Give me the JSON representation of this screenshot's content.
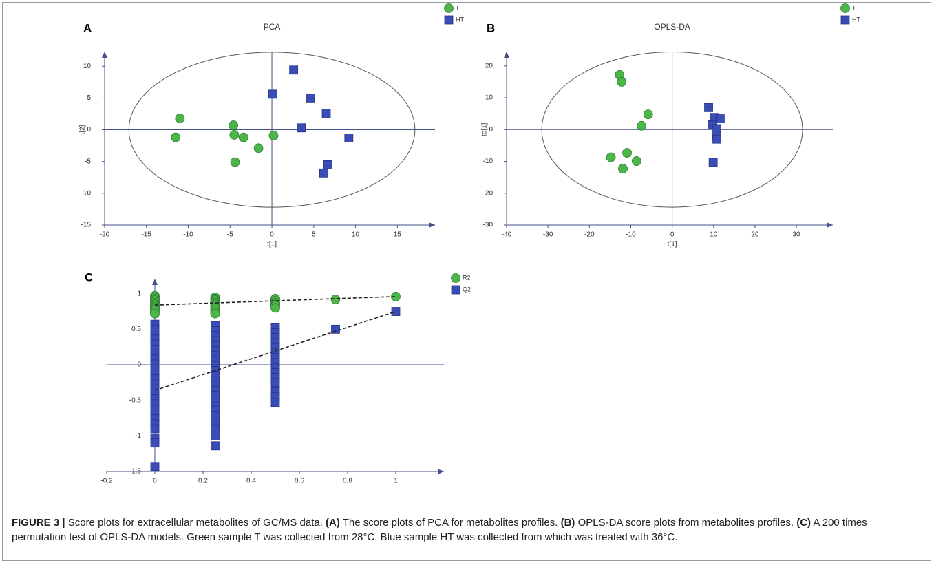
{
  "chart_data": [
    {
      "type": "scatter",
      "letter": "A",
      "title": "PCA",
      "x_label": "t[1]",
      "y_label": "t[2]",
      "xlim": [
        -20,
        19.5
      ],
      "ylim": [
        -15,
        12.3
      ],
      "xticks": [
        -20,
        -15,
        -10,
        -5,
        0,
        5,
        10,
        15
      ],
      "yticks": [
        -15,
        -10,
        -5,
        0,
        5,
        10
      ],
      "zero_lines": true,
      "ellipse": {
        "rx": 17.1,
        "ry": 12.2
      },
      "series": [
        {
          "name": "T",
          "color": "#4cb648",
          "marker": "circle",
          "x": [
            -11,
            -11.5,
            -4.6,
            -4.5,
            -3.4,
            -4.4,
            -1.6,
            0.2
          ],
          "values": [
            1.8,
            -1.2,
            0.7,
            -0.8,
            -1.2,
            -5.1,
            -2.9,
            -0.9
          ]
        },
        {
          "name": "HT",
          "color": "#3a4db5",
          "marker": "square",
          "x": [
            2.6,
            0.1,
            4.6,
            6.5,
            3.5,
            9.2,
            6.7,
            6.2
          ],
          "values": [
            9.4,
            5.6,
            5,
            2.6,
            0.3,
            -1.3,
            -5.5,
            -6.8
          ]
        }
      ]
    },
    {
      "type": "scatter",
      "letter": "B",
      "title": "OPLS-DA",
      "x_label": "t[1]",
      "y_label": "to[1]",
      "xlim": [
        -40,
        38.8
      ],
      "ylim": [
        -30,
        24.5
      ],
      "xticks": [
        -40,
        -30,
        -20,
        -10,
        0,
        10,
        20,
        30
      ],
      "yticks": [
        -30,
        -20,
        -10,
        0,
        10,
        20
      ],
      "zero_lines": true,
      "ellipse": {
        "rx": 31.5,
        "ry": 24.4
      },
      "series": [
        {
          "name": "T",
          "color": "#4cb648",
          "marker": "circle",
          "x": [
            -12.7,
            -12.2,
            -5.8,
            -7.4,
            -14.8,
            -10.9,
            -8.6,
            -11.9
          ],
          "values": [
            17.2,
            15,
            4.8,
            1.2,
            -8.7,
            -7.3,
            -9.9,
            -12.3
          ]
        },
        {
          "name": "HT",
          "color": "#3a4db5",
          "marker": "square",
          "x": [
            8.8,
            10.2,
            11.6,
            9.7,
            10.8,
            10.6,
            10.8,
            9.9
          ],
          "values": [
            6.9,
            3.8,
            3.4,
            1.5,
            0.3,
            -1.8,
            -3,
            -10.3
          ]
        }
      ]
    },
    {
      "type": "scatter",
      "letter": "C",
      "xlim": [
        -0.2,
        1.2
      ],
      "ylim": [
        -1.5,
        1.21
      ],
      "xticks": [
        -0.2,
        0,
        0.2,
        0.4,
        0.6,
        0.8,
        1
      ],
      "yticks": [
        -1.5,
        -1,
        -0.5,
        0,
        0.5,
        1
      ],
      "zero_lines": true,
      "series": [
        {
          "name": "R2",
          "color": "#4cb648",
          "marker": "circle",
          "x": [
            0,
            0,
            0,
            0,
            0,
            0,
            0,
            0,
            0,
            0,
            0,
            0,
            0,
            0.25,
            0.25,
            0.25,
            0.25,
            0.25,
            0.25,
            0.25,
            0.25,
            0.25,
            0.25,
            0.25,
            0.5,
            0.5,
            0.5,
            0.5,
            0.5,
            0.5,
            0.75,
            1
          ],
          "values": [
            0.97,
            0.95,
            0.93,
            0.91,
            0.89,
            0.87,
            0.85,
            0.83,
            0.81,
            0.79,
            0.77,
            0.74,
            0.72,
            0.95,
            0.93,
            0.91,
            0.89,
            0.87,
            0.85,
            0.83,
            0.8,
            0.77,
            0.74,
            0.72,
            0.93,
            0.9,
            0.87,
            0.85,
            0.83,
            0.8,
            0.92,
            0.96
          ],
          "trend_x": [
            0,
            1
          ],
          "trend": [
            0.84,
            0.96
          ]
        },
        {
          "name": "Q2",
          "color": "#3a4db5",
          "marker": "square",
          "x": [
            0,
            0,
            0,
            0,
            0,
            0,
            0,
            0,
            0,
            0,
            0,
            0,
            0,
            0,
            0,
            0,
            0,
            0,
            0,
            0,
            0,
            0,
            0,
            0,
            0,
            0.25,
            0.25,
            0.25,
            0.25,
            0.25,
            0.25,
            0.25,
            0.25,
            0.25,
            0.25,
            0.25,
            0.25,
            0.25,
            0.25,
            0.25,
            0.25,
            0.25,
            0.25,
            0.25,
            0.25,
            0.25,
            0.25,
            0.25,
            0.25,
            0.5,
            0.5,
            0.5,
            0.5,
            0.5,
            0.5,
            0.5,
            0.5,
            0.5,
            0.5,
            0.5,
            0.5,
            0.5,
            0.5,
            0.5,
            0.75,
            1
          ],
          "values": [
            0.57,
            0.5,
            0.43,
            0.36,
            0.29,
            0.22,
            0.15,
            0.08,
            0.01,
            -0.06,
            -0.13,
            -0.2,
            -0.27,
            -0.34,
            -0.41,
            -0.48,
            -0.55,
            -0.62,
            -0.69,
            -0.76,
            -0.83,
            -0.9,
            -1.03,
            -1.1,
            -1.43,
            0.55,
            0.48,
            0.41,
            0.34,
            0.27,
            0.2,
            0.13,
            0.06,
            -0.01,
            -0.08,
            -0.15,
            -0.22,
            -0.29,
            -0.36,
            -0.43,
            -0.5,
            -0.57,
            -0.64,
            -0.71,
            -0.78,
            -0.85,
            -0.9,
            -1,
            -1.14,
            0.52,
            0.45,
            0.38,
            0.31,
            0.24,
            0.17,
            0.1,
            0.03,
            -0.04,
            -0.11,
            -0.18,
            -0.25,
            -0.38,
            -0.45,
            -0.53,
            0.5,
            0.75
          ],
          "trend_x": [
            0,
            1
          ],
          "trend": [
            -0.36,
            0.75
          ]
        }
      ]
    }
  ],
  "caption": [
    {
      "text": "FIGURE 3 |",
      "bold": true
    },
    {
      "text": " Score plots for extracellular metabolites of GC/MS data. "
    },
    {
      "text": "(A)",
      "bold": true
    },
    {
      "text": " The score plots of PCA for metabolites profiles. "
    },
    {
      "text": "(B)",
      "bold": true
    },
    {
      "text": " OPLS-DA score plots from metabolites profiles. "
    },
    {
      "text": "(C)",
      "bold": true
    },
    {
      "text": " A 200 times permutation test of OPLS-DA models. Green sample T was collected from 28°C. Blue sample HT was collected from which was treated with 36°C."
    }
  ]
}
